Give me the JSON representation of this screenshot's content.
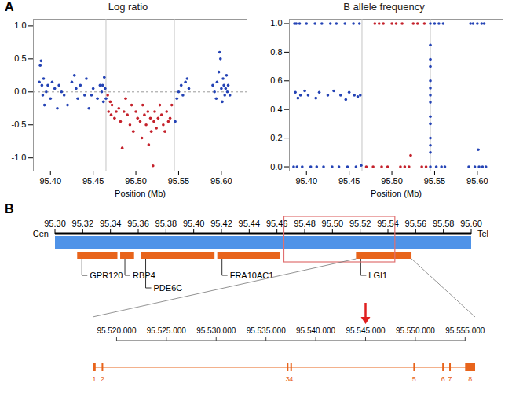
{
  "panels": [
    "A",
    "B"
  ],
  "chart_data": [
    {
      "type": "scatter",
      "title": "Log ratio",
      "x_label": "Position (Mb)",
      "xlim": [
        95.38,
        95.63
      ],
      "xticks": [
        {
          "value": 95.4,
          "label": "95.40"
        },
        {
          "value": 95.45,
          "label": "95.45"
        },
        {
          "value": 95.5,
          "label": "95.50"
        },
        {
          "value": 95.55,
          "label": "95.55"
        },
        {
          "value": 95.6,
          "label": "95.60"
        }
      ],
      "ylim": [
        -1.2,
        1.1
      ],
      "yticks": [
        {
          "value": -1,
          "label": "-1.0"
        },
        {
          "value": -0.5,
          "label": "-0.5"
        },
        {
          "value": 0,
          "label": "0.0"
        },
        {
          "value": 0.5,
          "label": "0.5"
        },
        {
          "value": 1,
          "label": "1.0"
        }
      ],
      "vlines": [
        95.465,
        95.545
      ],
      "hlines": [
        0
      ],
      "series": [
        {
          "color": "#2443b5",
          "x": [
            95.387,
            95.388,
            95.389,
            95.39,
            95.391,
            95.392,
            95.393,
            95.395,
            95.397,
            95.4,
            95.402,
            95.405,
            95.408,
            95.41,
            95.413,
            95.416,
            95.42,
            95.425,
            95.428,
            95.43,
            95.432,
            95.435,
            95.44,
            95.442,
            95.445,
            95.448,
            95.45,
            95.455,
            95.458,
            95.46,
            95.461,
            95.462,
            95.463,
            95.464,
            95.465,
            95.546,
            95.548,
            95.55,
            95.553,
            95.555,
            95.558,
            95.56,
            95.562,
            95.59,
            95.592,
            95.594,
            95.595,
            95.597,
            95.598,
            95.599,
            95.6,
            95.601,
            95.602,
            95.603,
            95.604,
            95.605,
            95.606,
            95.607,
            95.608,
            95.61
          ],
          "values": [
            0.15,
            0.4,
            0.47,
            0.1,
            -0.05,
            0.2,
            -0.2,
            0.0,
            0.1,
            -0.1,
            0.15,
            0.05,
            -0.25,
            0.1,
            0.0,
            -0.05,
            -0.2,
            0.15,
            0.25,
            0.05,
            -0.1,
            0.1,
            -0.05,
            0.2,
            -0.25,
            -0.05,
            0.05,
            -0.1,
            0.1,
            0.0,
            0.1,
            -0.15,
            0.22,
            0.05,
            -0.1,
            -0.45,
            -0.1,
            0.0,
            0.1,
            -0.05,
            0.15,
            0.2,
            0.05,
            0.1,
            0.0,
            -0.1,
            0.15,
            0.3,
            0.6,
            0.5,
            0.05,
            -0.15,
            0.2,
            0.1,
            -0.05,
            0.05,
            0.25,
            0.0,
            0.1,
            -0.05
          ]
        },
        {
          "color": "#c4212b",
          "x": [
            95.467,
            95.468,
            95.47,
            95.471,
            95.472,
            95.475,
            95.477,
            95.48,
            95.482,
            95.484,
            95.486,
            95.488,
            95.49,
            95.493,
            95.495,
            95.497,
            95.5,
            95.502,
            95.505,
            95.507,
            95.508,
            95.51,
            95.512,
            95.514,
            95.515,
            95.517,
            95.518,
            95.52,
            95.521,
            95.522,
            95.524,
            95.526,
            95.528,
            95.53,
            95.532,
            95.534,
            95.536,
            95.538,
            95.54,
            95.542
          ],
          "values": [
            -0.05,
            -0.3,
            -0.15,
            -0.35,
            -0.2,
            -0.4,
            -0.3,
            -0.25,
            -0.45,
            -0.85,
            -0.3,
            -0.1,
            -0.35,
            -0.5,
            -0.2,
            -0.6,
            -0.3,
            -0.4,
            -0.45,
            -0.7,
            -0.2,
            -0.35,
            -0.5,
            -0.3,
            -0.8,
            -0.4,
            -0.6,
            -1.12,
            -0.45,
            -0.3,
            -0.55,
            -0.4,
            -0.2,
            -0.35,
            -0.5,
            -0.6,
            -0.3,
            -0.45,
            -0.4,
            -0.2
          ]
        }
      ]
    },
    {
      "type": "scatter",
      "title": "B allele frequency",
      "x_label": "Position (Mb)",
      "xlim": [
        95.38,
        95.63
      ],
      "xticks": [
        {
          "value": 95.4,
          "label": "95.40"
        },
        {
          "value": 95.45,
          "label": "95.45"
        },
        {
          "value": 95.5,
          "label": "95.50"
        },
        {
          "value": 95.55,
          "label": "95.55"
        },
        {
          "value": 95.6,
          "label": "95.60"
        }
      ],
      "ylim": [
        -0.03,
        1.03
      ],
      "yticks": [
        {
          "value": 0,
          "label": "0.0"
        },
        {
          "value": 0.2,
          "label": "0.2"
        },
        {
          "value": 0.4,
          "label": "0.4"
        },
        {
          "value": 0.6,
          "label": "0.6"
        },
        {
          "value": 0.8,
          "label": "0.8"
        },
        {
          "value": 1,
          "label": "1.0"
        }
      ],
      "vlines": [
        95.465,
        95.545
      ],
      "series": [
        {
          "color": "#2443b5",
          "x": [
            95.386,
            95.388,
            95.392,
            95.4,
            95.41,
            95.418,
            95.428,
            95.435,
            95.445,
            95.455,
            95.462,
            95.387,
            95.39,
            95.393,
            95.398,
            95.402,
            95.411,
            95.415,
            95.425,
            95.432,
            95.44,
            95.446,
            95.45,
            95.456,
            95.46,
            95.463,
            95.385,
            95.389,
            95.395,
            95.405,
            95.412,
            95.42,
            95.43,
            95.438,
            95.448,
            95.458,
            95.464,
            95.545,
            95.545,
            95.545,
            95.545,
            95.545,
            95.545,
            95.545,
            95.545,
            95.545,
            95.545,
            95.545,
            95.545,
            95.545,
            95.545,
            95.55,
            95.555,
            95.56,
            95.592,
            95.595,
            95.6,
            95.605,
            95.608,
            95.552,
            95.558,
            95.562,
            95.59,
            95.597,
            95.601,
            95.602,
            95.606,
            95.61
          ],
          "values": [
            1,
            1,
            1,
            1,
            1,
            1,
            1,
            1,
            1,
            1,
            1,
            0.52,
            0.48,
            0.5,
            0.53,
            0.5,
            0.48,
            0.52,
            0.5,
            0.53,
            0.5,
            0.47,
            0.52,
            0.5,
            0.49,
            0.5,
            0,
            0,
            0,
            0,
            0,
            0,
            0,
            0,
            0,
            0,
            0.01,
            1,
            0.85,
            0.75,
            0.7,
            0.6,
            0.55,
            0.5,
            0.45,
            0.35,
            0.3,
            0.2,
            0.15,
            0.1,
            0,
            1,
            1,
            1,
            1,
            1,
            1,
            1,
            1,
            0,
            0,
            0,
            0,
            0,
            0.12,
            0,
            0,
            0
          ]
        },
        {
          "color": "#c4212b",
          "x": [
            95.48,
            95.485,
            95.49,
            95.5,
            95.505,
            95.512,
            95.525,
            95.53,
            95.538,
            95.47,
            95.478,
            95.488,
            95.495,
            95.51,
            95.515,
            95.52,
            95.522,
            95.535,
            95.54
          ],
          "values": [
            1,
            1,
            1,
            1,
            1,
            1,
            1,
            1,
            1,
            0,
            0,
            0,
            0,
            0,
            0,
            0,
            0.08,
            0,
            0
          ]
        }
      ]
    }
  ],
  "diagram": {
    "scale": {
      "range": [
        95.3,
        95.6
      ],
      "ticks": [
        {
          "value": 95.3,
          "label": "95.30"
        },
        {
          "value": 95.32,
          "label": "95.32"
        },
        {
          "value": 95.34,
          "label": "95.34"
        },
        {
          "value": 95.36,
          "label": "95.36"
        },
        {
          "value": 95.38,
          "label": "95.38"
        },
        {
          "value": 95.4,
          "label": "95.40"
        },
        {
          "value": 95.42,
          "label": "95.42"
        },
        {
          "value": 95.44,
          "label": "95.44"
        },
        {
          "value": 95.46,
          "label": "95.46"
        },
        {
          "value": 95.48,
          "label": "95.48"
        },
        {
          "value": 95.5,
          "label": "95.50"
        },
        {
          "value": 95.52,
          "label": "95.52"
        },
        {
          "value": 95.54,
          "label": "95.54"
        },
        {
          "value": 95.56,
          "label": "95.56"
        },
        {
          "value": 95.58,
          "label": "95.58"
        },
        {
          "value": 95.6,
          "label": "95.60"
        }
      ],
      "left_label": "Cen",
      "right_label": "Tel"
    },
    "highlight": [
      95.465,
      95.545
    ],
    "genes": [
      {
        "name": "GPR120",
        "start": 95.316,
        "end": 95.345
      },
      {
        "name": "RBP4",
        "start": 95.347,
        "end": 95.357
      },
      {
        "name": "PDE6C",
        "start": 95.362,
        "end": 95.415
      },
      {
        "name": "FRA10AC1",
        "start": 95.417,
        "end": 95.462
      },
      {
        "name": "LGI1",
        "start": 95.517,
        "end": 95.557
      }
    ],
    "zoom": {
      "transcript": [
        95517600,
        95556000
      ],
      "ticks": [
        {
          "value": 95520000,
          "label": "95.520.000"
        },
        {
          "value": 95525000,
          "label": "95.525.000"
        },
        {
          "value": 95530000,
          "label": "95.530.000"
        },
        {
          "value": 95535000,
          "label": "95.535.000"
        },
        {
          "value": 95540000,
          "label": "95.540.000"
        },
        {
          "value": 95545000,
          "label": "95.545.000"
        },
        {
          "value": 95550000,
          "label": "95.550.000"
        },
        {
          "value": 95555000,
          "label": "95.555.000"
        }
      ],
      "exons": [
        {
          "label": "1",
          "start": 95517600,
          "end": 95517900
        },
        {
          "label": "2",
          "start": 95518500,
          "end": 95518650
        },
        {
          "label": "3",
          "start": 95537100,
          "end": 95537250
        },
        {
          "label": "4",
          "start": 95537450,
          "end": 95537600
        },
        {
          "label": "5",
          "start": 95549800,
          "end": 95549950
        },
        {
          "label": "6",
          "start": 95552700,
          "end": 95552850
        },
        {
          "label": "7",
          "start": 95553400,
          "end": 95553550
        },
        {
          "label": "8",
          "start": 95555000,
          "end": 95556000
        }
      ],
      "arrow": 95545000
    }
  }
}
